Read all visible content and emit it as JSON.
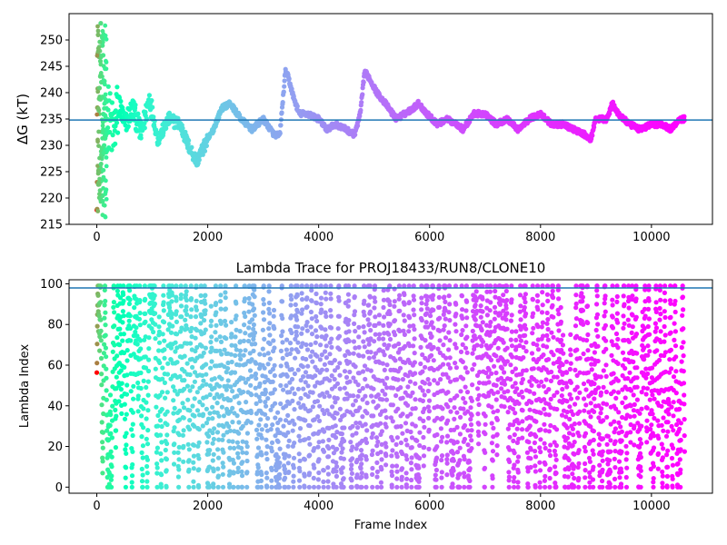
{
  "chart_data": [
    {
      "type": "scatter",
      "title": "",
      "ylabel": "ΔG (kT)",
      "xlabel": "",
      "xlim": [
        -500,
        11100
      ],
      "ylim": [
        215,
        255
      ],
      "xticks": [
        0,
        2000,
        4000,
        6000,
        8000,
        10000
      ],
      "yticks": [
        215,
        220,
        225,
        230,
        235,
        240,
        245,
        250
      ],
      "hline": 234.8,
      "colormap": "rainbow (red at early frames → violet at late frames)",
      "frame_max": 10600,
      "trace_knots": {
        "x": [
          0,
          60,
          120,
          200,
          300,
          400,
          500,
          650,
          800,
          950,
          1100,
          1300,
          1500,
          1650,
          1800,
          1950,
          2100,
          2250,
          2400,
          2600,
          2800,
          3000,
          3200,
          3300,
          3400,
          3450,
          3550,
          3650,
          3800,
          4000,
          4150,
          4300,
          4500,
          4650,
          4750,
          4830,
          4900,
          5050,
          5200,
          5400,
          5550,
          5700,
          5800,
          5950,
          6150,
          6300,
          6500,
          6600,
          6800,
          7000,
          7200,
          7400,
          7600,
          7800,
          8000,
          8200,
          8400,
          8600,
          8800,
          8900,
          9000,
          9200,
          9300,
          9400,
          9600,
          9800,
          10000,
          10200,
          10350,
          10500,
          10600
        ],
        "y": [
          235,
          238,
          230,
          236,
          232,
          238,
          234,
          237,
          232,
          239,
          231,
          235,
          234,
          230,
          227,
          230,
          233,
          237,
          238,
          235,
          233,
          235,
          232,
          232,
          244,
          243,
          239,
          236,
          236,
          235,
          233,
          234,
          233,
          232,
          236,
          244,
          243,
          240,
          238,
          235,
          236,
          237,
          238,
          236,
          234,
          235,
          234,
          233,
          236,
          236,
          234,
          235,
          233,
          235,
          236,
          234,
          234,
          233,
          232,
          231,
          235,
          235,
          238,
          236,
          234,
          233,
          234,
          234,
          233,
          235,
          235
        ]
      }
    },
    {
      "type": "scatter",
      "title": "Lambda Trace for PROJ18433/RUN8/CLONE10",
      "xlabel": "Frame Index",
      "ylabel": "Lambda Index",
      "xlim": [
        -500,
        11100
      ],
      "ylim": [
        -3,
        102
      ],
      "xticks": [
        0,
        2000,
        4000,
        6000,
        8000,
        10000
      ],
      "yticks": [
        0,
        20,
        40,
        60,
        80,
        100
      ],
      "hline": 98,
      "lambda_min": 0,
      "lambda_max": 99,
      "colormap": "rainbow (red at early frames → violet at late frames)",
      "frame_max": 10600
    }
  ]
}
